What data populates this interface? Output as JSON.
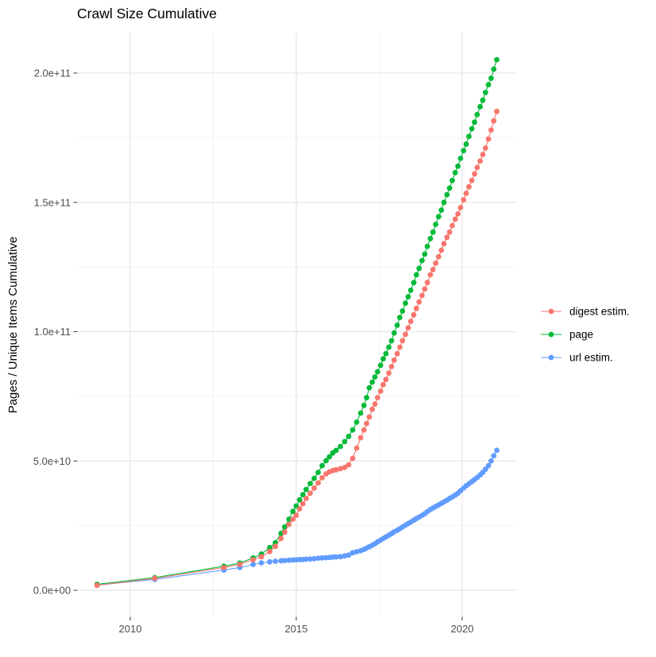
{
  "title": "Crawl Size Cumulative",
  "axes": {
    "y_label": "Pages / Unique Items Cumulative",
    "x_ticks": [
      {
        "value": 2010,
        "label": "2010"
      },
      {
        "value": 2015,
        "label": "2015"
      },
      {
        "value": 2020,
        "label": "2020"
      }
    ],
    "y_ticks": [
      {
        "value": 0,
        "label": "0.0e+00"
      },
      {
        "value": 50,
        "label": "5.0e+10"
      },
      {
        "value": 100,
        "label": "1.0e+11"
      },
      {
        "value": 150,
        "label": "1.5e+11"
      },
      {
        "value": 200,
        "label": "2.0e+11"
      }
    ],
    "x_minor": [
      2012.5,
      2017.5
    ],
    "y_minor": [
      25,
      75,
      125,
      175
    ],
    "x_range": [
      2008.4,
      2021.65
    ],
    "y_range": [
      -10.3,
      215.5
    ]
  },
  "legend": {
    "items": [
      {
        "label": "digest estim.",
        "color": "#F8766D"
      },
      {
        "label": "page",
        "color": "#00BA38"
      },
      {
        "label": "url estim.",
        "color": "#619CFF"
      }
    ]
  },
  "colors": {
    "background": "#ffffff",
    "grid_major": "#e7e7e7",
    "grid_minor": "#f2f2f2",
    "tick_mark": "#333333",
    "digest": "#F8766D",
    "page": "#00BA38",
    "url": "#619CFF"
  },
  "chart_data": {
    "type": "line",
    "title": "Crawl Size Cumulative",
    "xlabel": "",
    "ylabel": "Pages / Unique Items Cumulative",
    "y_unit": "pages / unique items, cumulative (values in billions, 1e9)",
    "xlim": [
      2008.4,
      2021.65
    ],
    "ylim_e9": [
      -10.3,
      215.5
    ],
    "grid": true,
    "legend_position": "right",
    "x": [
      2009.0,
      2010.74,
      2012.82,
      2013.3,
      2013.7,
      2013.95,
      2014.2,
      2014.37,
      2014.54,
      2014.65,
      2014.78,
      2014.9,
      2015.0,
      2015.1,
      2015.2,
      2015.3,
      2015.42,
      2015.54,
      2015.66,
      2015.78,
      2015.9,
      2016.0,
      2016.1,
      2016.2,
      2016.33,
      2016.46,
      2016.58,
      2016.7,
      2016.82,
      2016.94,
      2017.04,
      2017.12,
      2017.2,
      2017.29,
      2017.37,
      2017.45,
      2017.54,
      2017.62,
      2017.7,
      2017.79,
      2017.87,
      2017.95,
      2018.04,
      2018.12,
      2018.2,
      2018.29,
      2018.37,
      2018.45,
      2018.54,
      2018.62,
      2018.7,
      2018.79,
      2018.87,
      2018.95,
      2019.04,
      2019.12,
      2019.2,
      2019.29,
      2019.37,
      2019.45,
      2019.54,
      2019.62,
      2019.7,
      2019.79,
      2019.87,
      2019.95,
      2020.04,
      2020.12,
      2020.2,
      2020.29,
      2020.37,
      2020.45,
      2020.54,
      2020.62,
      2020.7,
      2020.79,
      2020.87,
      2020.95,
      2021.04
    ],
    "series": [
      {
        "name": "digest estim.",
        "color": "#F8766D",
        "values_e9": [
          1.9,
          4.6,
          8.8,
          10.0,
          11.8,
          13,
          15,
          17,
          20,
          22.5,
          25.5,
          27.5,
          29,
          31.5,
          33.5,
          35.5,
          37.5,
          39.5,
          41.5,
          43.5,
          45,
          45.8,
          46.3,
          46.6,
          47,
          47.5,
          48.5,
          51,
          55,
          59,
          62,
          64.5,
          67,
          70,
          72,
          74.5,
          77,
          79.5,
          81.5,
          84,
          86.5,
          89,
          91.5,
          94,
          96.5,
          99,
          101.5,
          104,
          106.5,
          109,
          111.5,
          114,
          116.5,
          119,
          122,
          124,
          126.5,
          129,
          131.5,
          134,
          136.5,
          138.5,
          141,
          143.5,
          145.5,
          148,
          151,
          153.5,
          156,
          158.5,
          161,
          163.5,
          166,
          168.5,
          171,
          174.5,
          178,
          181.5,
          185.2
        ]
      },
      {
        "name": "page",
        "color": "#00BA38",
        "values_e9": [
          2.3,
          4.9,
          9.3,
          10.5,
          12.5,
          14,
          16.5,
          18.4,
          22,
          24.5,
          27.5,
          30.5,
          32.6,
          35,
          37,
          39,
          41.3,
          43.3,
          45.6,
          48.2,
          50.1,
          51.6,
          53.1,
          54.1,
          55.6,
          57.5,
          59.5,
          62,
          65,
          68.5,
          71.5,
          74.5,
          78.3,
          80.5,
          82.5,
          84.5,
          87,
          89.5,
          91.5,
          94,
          96.5,
          99.5,
          102.5,
          105.5,
          108,
          111,
          113.5,
          116,
          119,
          122,
          124.5,
          127.5,
          130,
          133,
          136,
          138.5,
          141.5,
          144.5,
          147,
          150,
          153,
          155.5,
          158.5,
          161.5,
          164,
          167,
          170,
          172.5,
          175.5,
          178.5,
          181,
          184,
          187,
          189.5,
          192.5,
          195.5,
          198,
          201.5,
          205.2
        ]
      },
      {
        "name": "url estim.",
        "color": "#619CFF",
        "values_e9": [
          2.0,
          4.2,
          7.8,
          8.8,
          10.0,
          10.6,
          11.0,
          11.2,
          11.4,
          11.5,
          11.6,
          11.7,
          11.8,
          11.9,
          11.9,
          12.0,
          12.1,
          12.2,
          12.4,
          12.5,
          12.6,
          12.7,
          12.8,
          12.9,
          13.0,
          13.3,
          13.6,
          14.5,
          14.9,
          15.3,
          15.8,
          16.3,
          16.8,
          17.4,
          18.0,
          18.7,
          19.4,
          20.0,
          20.6,
          21.3,
          21.9,
          22.6,
          23.2,
          23.8,
          24.5,
          25.2,
          25.8,
          26.4,
          27.1,
          27.7,
          28.3,
          29.0,
          29.6,
          30.4,
          31.2,
          31.8,
          32.4,
          33.0,
          33.6,
          34.2,
          34.8,
          35.5,
          36.1,
          36.8,
          37.5,
          38.5,
          39.5,
          40.4,
          41.2,
          42.0,
          42.8,
          43.6,
          44.6,
          45.6,
          46.8,
          48.2,
          50.0,
          52.0,
          54.1
        ]
      }
    ]
  }
}
